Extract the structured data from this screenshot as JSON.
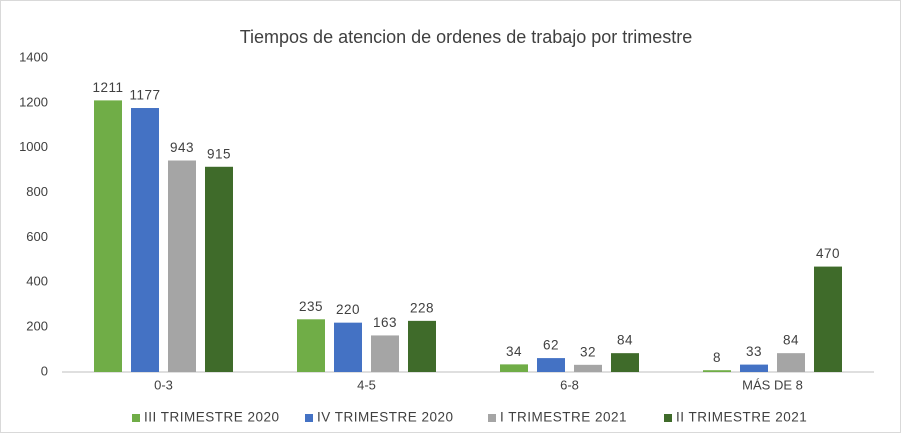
{
  "chart_data": {
    "type": "bar",
    "title": "Tiempos de atencion de ordenes de trabajo por trimestre",
    "categories": [
      "0-3",
      "4-5",
      "6-8",
      "MÁS DE 8"
    ],
    "series": [
      {
        "name": "III TRIMESTRE 2020",
        "color": "#70ad47",
        "values": [
          1211,
          235,
          34,
          8
        ]
      },
      {
        "name": "IV TRIMESTRE 2020",
        "color": "#4472c4",
        "values": [
          1177,
          220,
          62,
          33
        ]
      },
      {
        "name": "I TRIMESTRE 2021",
        "color": "#a5a5a5",
        "values": [
          943,
          163,
          32,
          84
        ]
      },
      {
        "name": "II TRIMESTRE 2021",
        "color": "#3f6b2a",
        "values": [
          915,
          228,
          84,
          470
        ]
      }
    ],
    "ylim": [
      0,
      1400
    ],
    "yticks": [
      0,
      200,
      400,
      600,
      800,
      1000,
      1200,
      1400
    ],
    "grid": false,
    "legend": "bottom"
  }
}
